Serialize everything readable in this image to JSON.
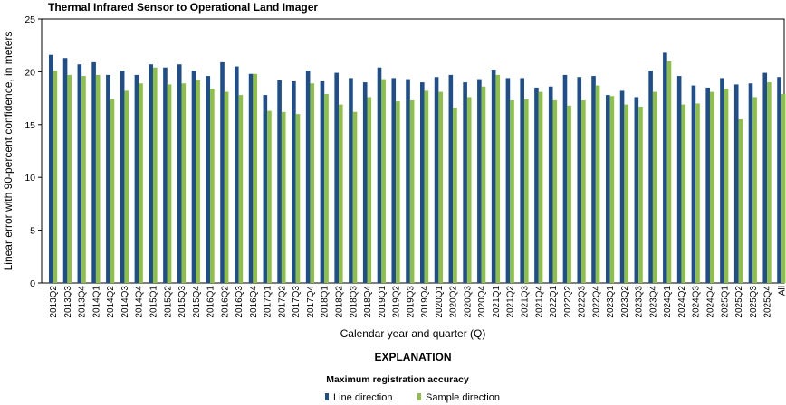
{
  "chart_data": {
    "type": "bar",
    "title": "Thermal Infrared Sensor to Operational Land Imager",
    "xlabel": "Calendar year and quarter (Q)",
    "ylabel": "Linear error with 90-percent confidence, in meters",
    "ylim": [
      0,
      25
    ],
    "yticks": [
      "0",
      "5",
      "10",
      "15",
      "20",
      "25"
    ],
    "grid": false,
    "colors": {
      "line": "#1f4e8c",
      "sample": "#8dc044"
    },
    "categories": [
      "2013Q2",
      "2013Q3",
      "2013Q4",
      "2014Q1",
      "2014Q2",
      "2014Q3",
      "2014Q4",
      "2015Q1",
      "2015Q2",
      "2015Q3",
      "2015Q4",
      "2016Q1",
      "2016Q2",
      "2016Q3",
      "2016Q4",
      "2017Q1",
      "2017Q2",
      "2017Q3",
      "2017Q4",
      "2018Q1",
      "2018Q2",
      "2018Q3",
      "2018Q4",
      "2019Q1",
      "2019Q2",
      "2019Q3",
      "2019Q4",
      "2020Q1",
      "2020Q2",
      "2020Q3",
      "2020Q4",
      "2021Q1",
      "2021Q2",
      "2021Q3",
      "2021Q4",
      "2022Q1",
      "2022Q2",
      "2022Q3",
      "2022Q4",
      "2023Q1",
      "2023Q2",
      "2023Q3",
      "2023Q4",
      "2024Q1",
      "2024Q2",
      "2024Q3",
      "2024Q4",
      "2025Q1",
      "2025Q2",
      "2025Q3",
      "2025Q4",
      "All"
    ],
    "series": [
      {
        "name": "Line direction",
        "values": [
          21.6,
          21.3,
          20.7,
          20.9,
          19.7,
          20.1,
          19.7,
          20.7,
          20.4,
          20.7,
          20.1,
          19.6,
          20.9,
          20.5,
          19.8,
          17.8,
          19.2,
          19.1,
          20.1,
          19.1,
          19.9,
          19.4,
          19.0,
          20.4,
          19.4,
          19.3,
          19.0,
          19.5,
          19.7,
          19.0,
          19.3,
          20.2,
          19.4,
          19.4,
          18.5,
          18.6,
          19.7,
          19.5,
          19.6,
          17.8,
          18.2,
          17.6,
          20.1,
          21.8,
          19.6,
          18.7,
          18.5,
          19.4,
          18.8,
          18.9,
          19.9,
          19.5
        ]
      },
      {
        "name": "Sample direction",
        "values": [
          20.1,
          19.7,
          19.6,
          19.7,
          17.4,
          18.2,
          18.9,
          20.4,
          18.8,
          18.9,
          19.2,
          18.4,
          18.1,
          17.8,
          19.8,
          16.3,
          16.2,
          16.0,
          18.9,
          17.9,
          16.9,
          16.2,
          17.6,
          19.3,
          17.2,
          17.3,
          18.2,
          18.1,
          16.6,
          17.6,
          18.6,
          19.7,
          17.3,
          17.4,
          18.1,
          17.3,
          16.8,
          17.3,
          18.7,
          17.7,
          16.9,
          16.7,
          18.1,
          21.0,
          16.9,
          17.0,
          18.1,
          18.4,
          15.5,
          17.6,
          19.0,
          17.9
        ]
      }
    ]
  },
  "explanation": {
    "heading": "EXPLANATION",
    "subheading": "Maximum registration accuracy",
    "legend": [
      {
        "label": "Line direction",
        "color": "#1f4e8c"
      },
      {
        "label": "Sample direction",
        "color": "#8dc044"
      }
    ]
  }
}
